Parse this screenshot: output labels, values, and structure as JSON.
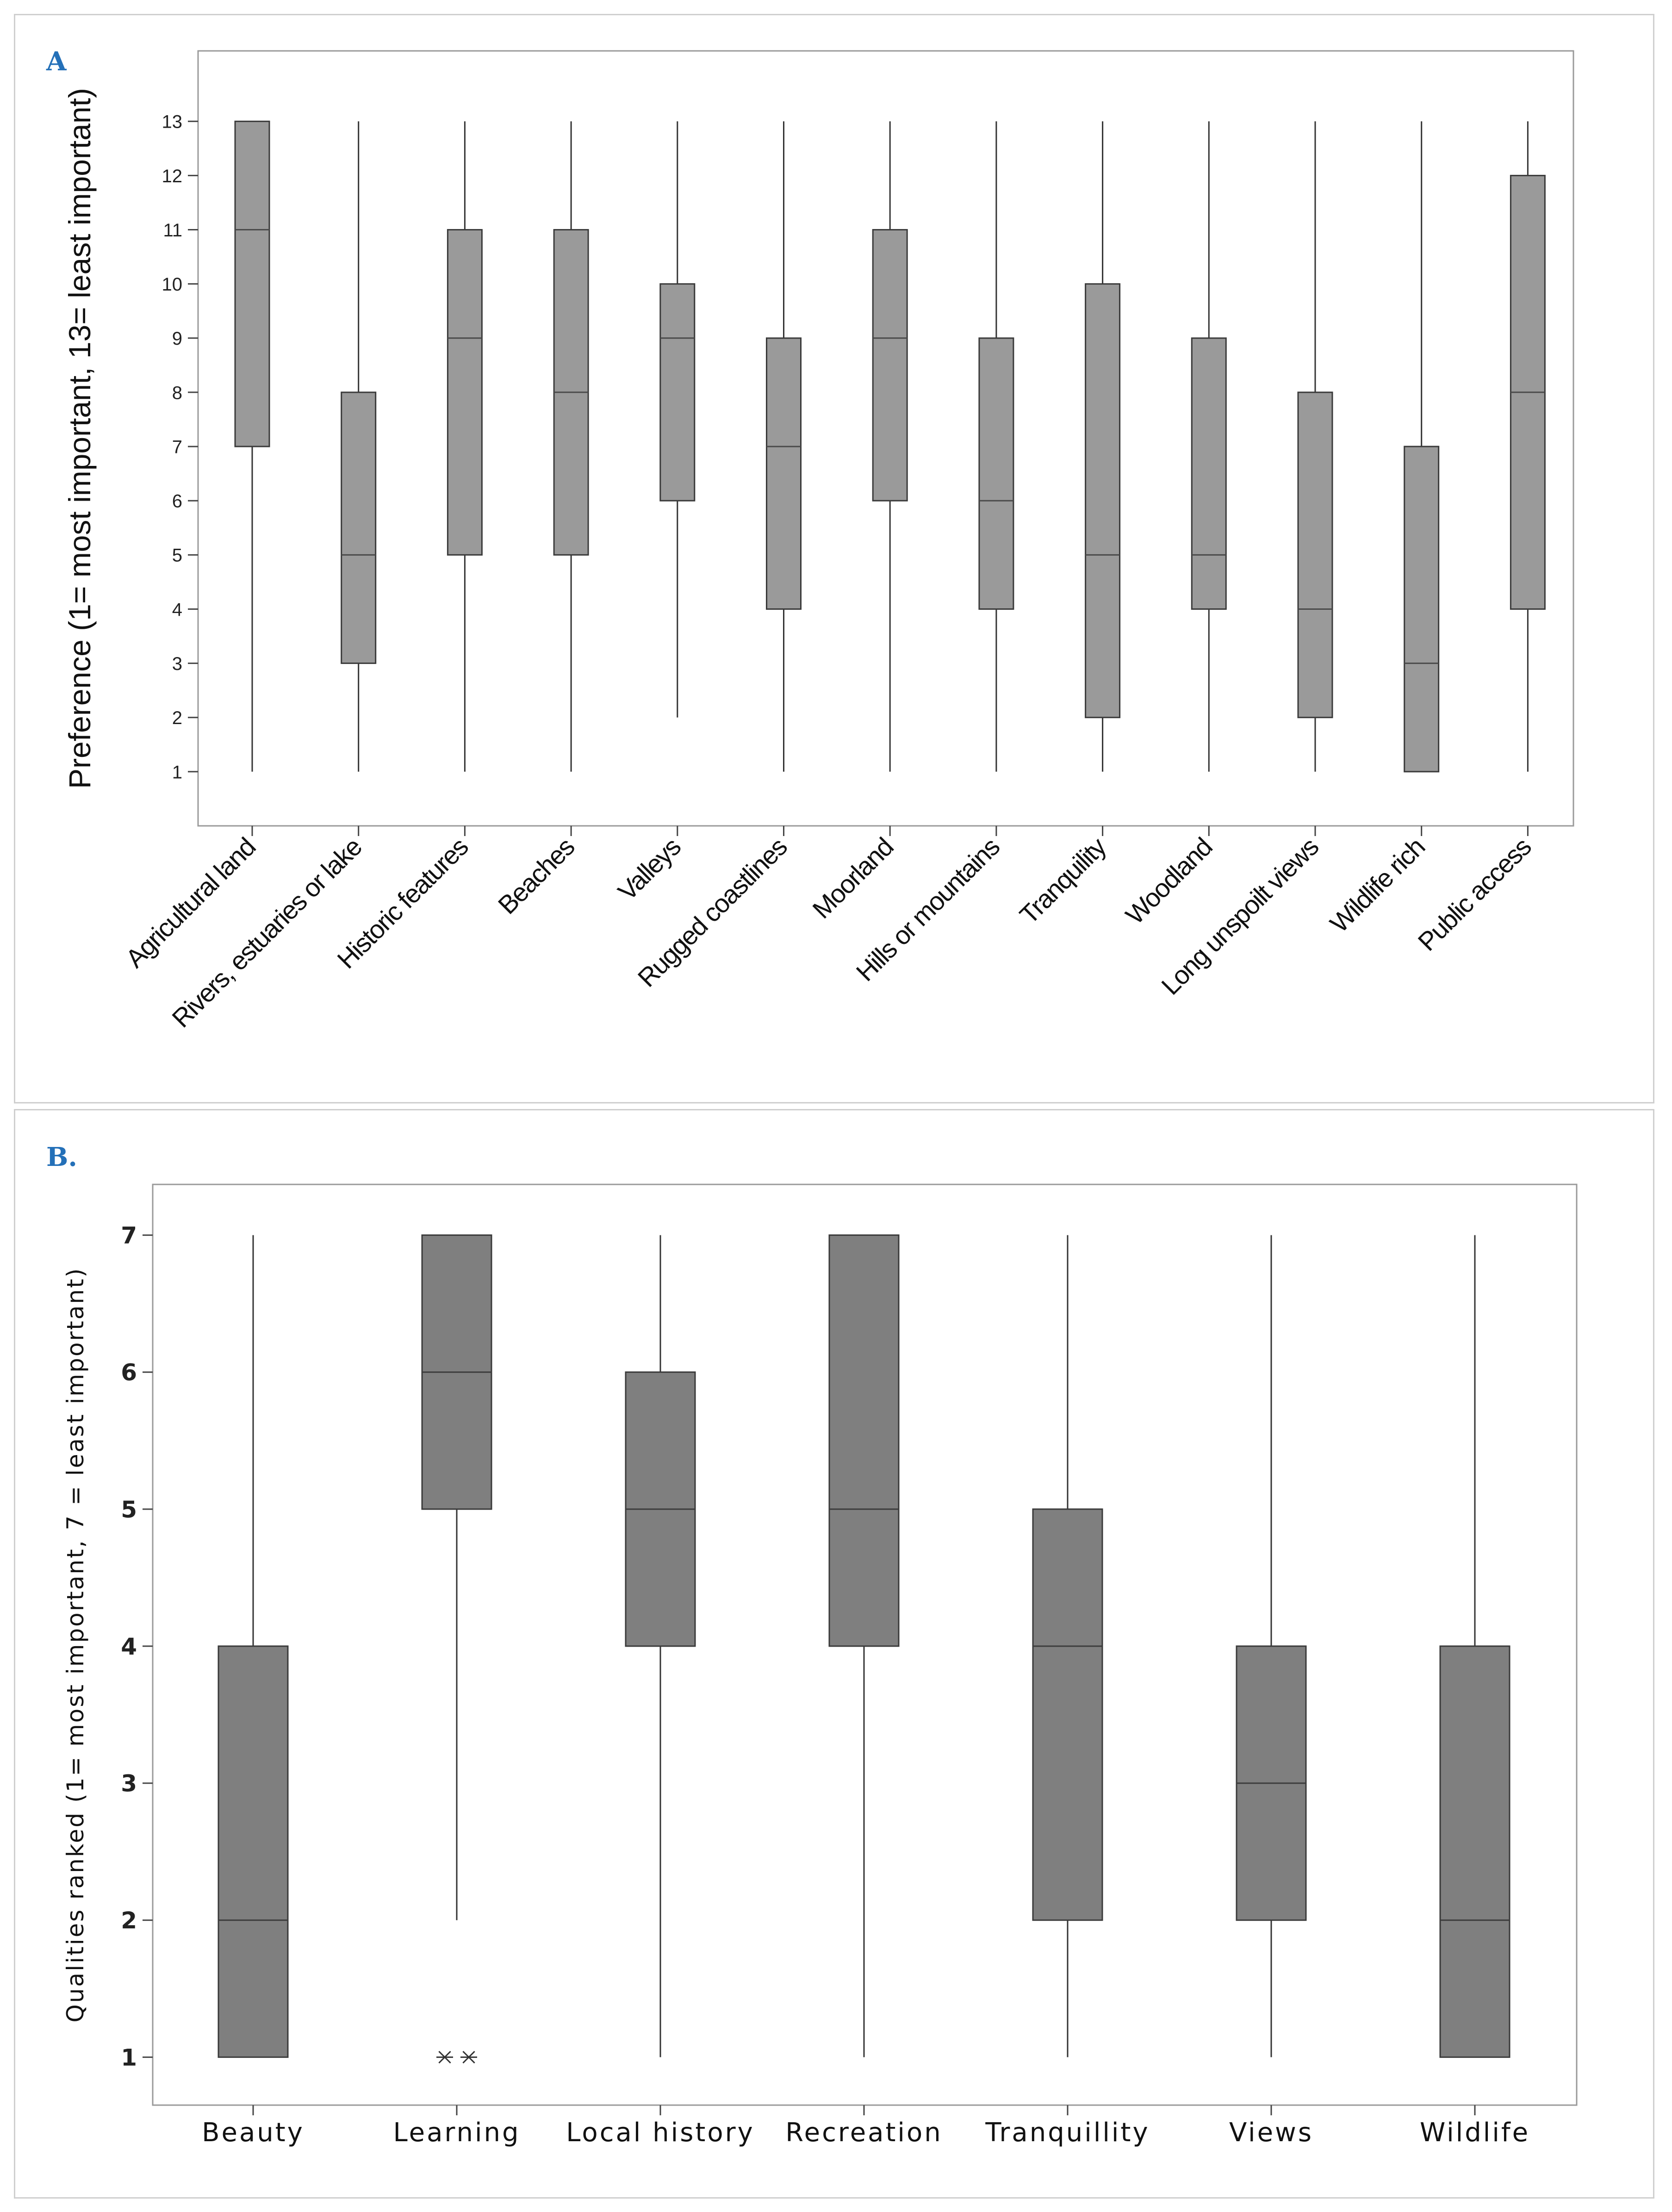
{
  "panels": {
    "a_label": "A",
    "b_label": "B."
  },
  "chart_data": [
    {
      "type": "boxplot",
      "panel": "A",
      "ylabel": "Preference (1= most important, 13= least important)",
      "xlabel": "",
      "ylim": [
        0,
        14.3
      ],
      "yticks": [
        1,
        2,
        3,
        4,
        5,
        6,
        7,
        8,
        9,
        10,
        11,
        12,
        13
      ],
      "categories": [
        "Agricultural land",
        "Rivers, estuaries or lake",
        "Historic features",
        "Beaches",
        "Valleys",
        "Rugged coastlines",
        "Moorland",
        "Hills or mountains",
        "Tranquility",
        "Woodland",
        "Long unspoilt views",
        "Wildlife rich",
        "Public access"
      ],
      "series": [
        {
          "name": "Agricultural land",
          "min": 1,
          "q1": 7,
          "median": 11,
          "q3": 13,
          "max": 13
        },
        {
          "name": "Rivers, estuaries or lake",
          "min": 1,
          "q1": 3,
          "median": 5,
          "q3": 8,
          "max": 13
        },
        {
          "name": "Historic features",
          "min": 1,
          "q1": 5,
          "median": 9,
          "q3": 11,
          "max": 13
        },
        {
          "name": "Beaches",
          "min": 1,
          "q1": 5,
          "median": 8,
          "q3": 11,
          "max": 13
        },
        {
          "name": "Valleys",
          "min": 2,
          "q1": 6,
          "median": 9,
          "q3": 10,
          "max": 13
        },
        {
          "name": "Rugged coastlines",
          "min": 1,
          "q1": 4,
          "median": 7,
          "q3": 9,
          "max": 13
        },
        {
          "name": "Moorland",
          "min": 1,
          "q1": 6,
          "median": 9,
          "q3": 11,
          "max": 13
        },
        {
          "name": "Hills or mountains",
          "min": 1,
          "q1": 4,
          "median": 6,
          "q3": 9,
          "max": 13
        },
        {
          "name": "Tranquility",
          "min": 1,
          "q1": 2,
          "median": 5,
          "q3": 10,
          "max": 13
        },
        {
          "name": "Woodland",
          "min": 1,
          "q1": 4,
          "median": 5,
          "q3": 9,
          "max": 13
        },
        {
          "name": "Long unspoilt views",
          "min": 1,
          "q1": 2,
          "median": 4,
          "q3": 8,
          "max": 13
        },
        {
          "name": "Wildlife rich",
          "min": 1,
          "q1": 1,
          "median": 3,
          "q3": 7,
          "max": 13
        },
        {
          "name": "Public access",
          "min": 1,
          "q1": 4,
          "median": 8,
          "q3": 12,
          "max": 13
        }
      ],
      "box_color": "#9a9a9a"
    },
    {
      "type": "boxplot",
      "panel": "B.",
      "ylabel": "Qualities ranked (1= most important, 7 = least important)",
      "xlabel": "",
      "ylim": [
        0.65,
        7.37
      ],
      "yticks": [
        1,
        2,
        3,
        4,
        5,
        6,
        7
      ],
      "categories": [
        "Beauty",
        "Learning",
        "Local history",
        "Recreation",
        "Tranquillity",
        "Views",
        "Wildlife"
      ],
      "series": [
        {
          "name": "Beauty",
          "min": 1,
          "q1": 1,
          "median": 2,
          "q3": 4,
          "max": 7,
          "outliers": []
        },
        {
          "name": "Learning",
          "min": 2,
          "q1": 5,
          "median": 6,
          "q3": 7,
          "max": 7,
          "outliers": [
            1,
            1
          ]
        },
        {
          "name": "Local history",
          "min": 1,
          "q1": 4,
          "median": 5,
          "q3": 6,
          "max": 7,
          "outliers": []
        },
        {
          "name": "Recreation",
          "min": 1,
          "q1": 4,
          "median": 5,
          "q3": 7,
          "max": 7,
          "outliers": []
        },
        {
          "name": "Tranquillity",
          "min": 1,
          "q1": 2,
          "median": 4,
          "q3": 5,
          "max": 7,
          "outliers": []
        },
        {
          "name": "Views",
          "min": 1,
          "q1": 2,
          "median": 3,
          "q3": 4,
          "max": 7,
          "outliers": []
        },
        {
          "name": "Wildlife",
          "min": 1,
          "q1": 1,
          "median": 2,
          "q3": 4,
          "max": 7,
          "outliers": []
        }
      ],
      "box_color": "#7f7f7f"
    }
  ]
}
